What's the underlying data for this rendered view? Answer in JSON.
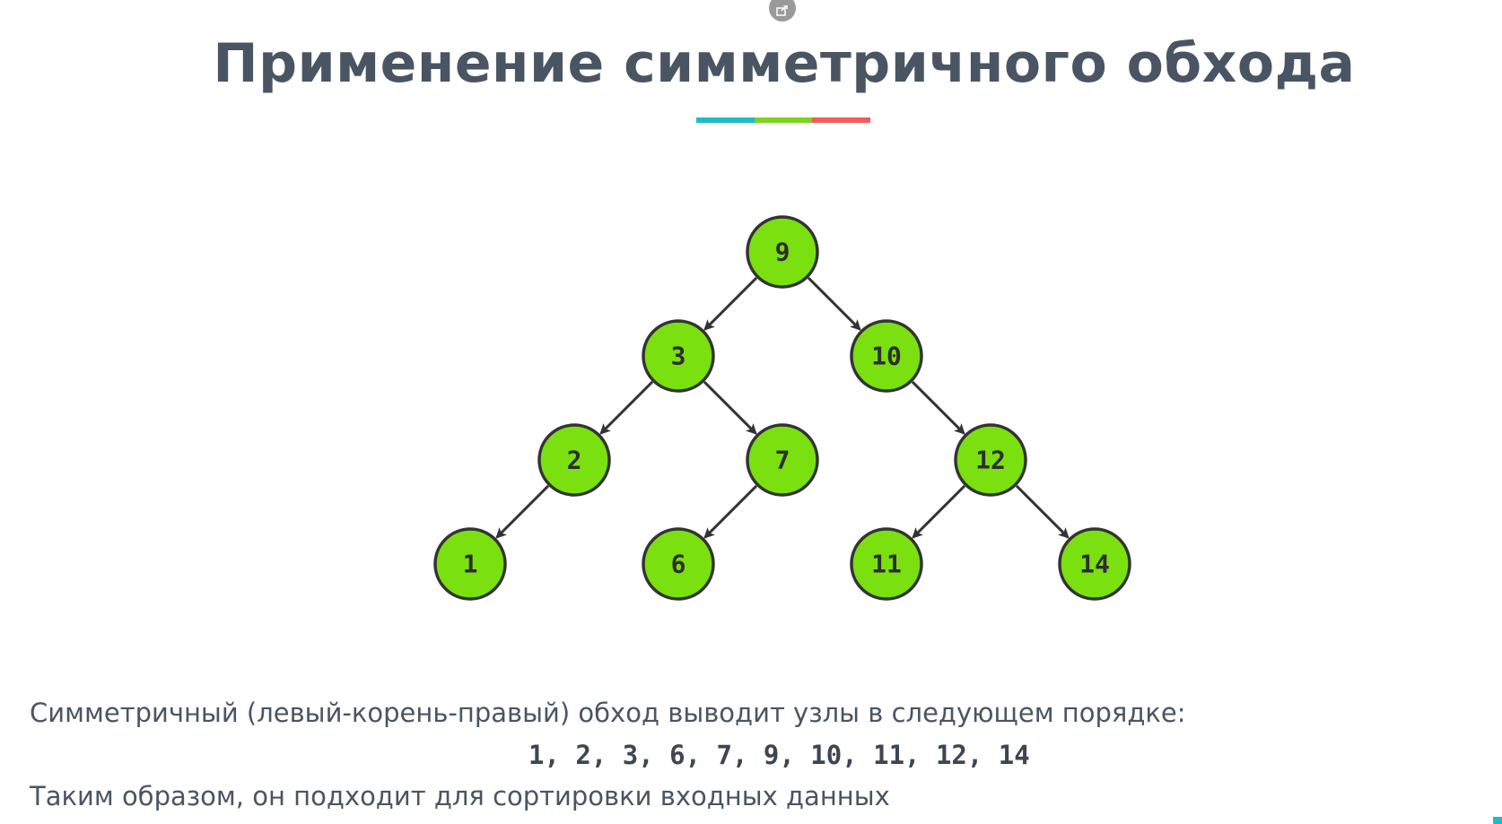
{
  "slide": {
    "title": "Применение симметричного обхода",
    "underline_colors": [
      "#1fbcc6",
      "#7ed321",
      "#f25c5c"
    ],
    "description": "Симметричный (левый-корень-правый) обход выводит узлы в следующем порядке:",
    "sequence": "1, 2, 3, 6, 7, 9, 10, 11, 12, 14",
    "conclusion": "Таким образом, он подходит для сортировки входных данных"
  },
  "tree": {
    "node_color": "#7ae010",
    "nodes": [
      {
        "id": "n9",
        "label": "9"
      },
      {
        "id": "n3",
        "label": "3"
      },
      {
        "id": "n10",
        "label": "10"
      },
      {
        "id": "n2",
        "label": "2"
      },
      {
        "id": "n7",
        "label": "7"
      },
      {
        "id": "n12",
        "label": "12"
      },
      {
        "id": "n1",
        "label": "1"
      },
      {
        "id": "n6",
        "label": "6"
      },
      {
        "id": "n11",
        "label": "11"
      },
      {
        "id": "n14",
        "label": "14"
      }
    ],
    "edges": [
      [
        "n9",
        "n3"
      ],
      [
        "n9",
        "n10"
      ],
      [
        "n3",
        "n2"
      ],
      [
        "n3",
        "n7"
      ],
      [
        "n10",
        "n12"
      ],
      [
        "n2",
        "n1"
      ],
      [
        "n7",
        "n6"
      ],
      [
        "n12",
        "n11"
      ],
      [
        "n12",
        "n14"
      ]
    ]
  },
  "icons": {
    "share": "external-link-icon"
  }
}
